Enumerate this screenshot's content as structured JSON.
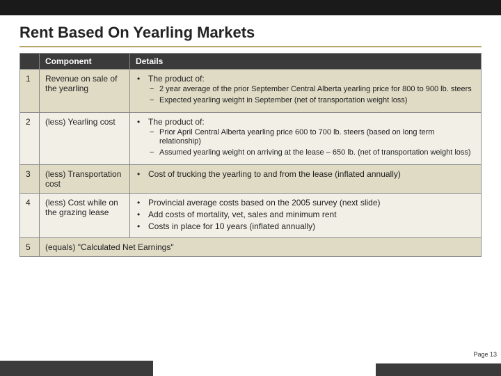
{
  "title": "Rent Based On Yearling Markets",
  "page_number": "Page 13",
  "table": {
    "headers": [
      "Component",
      "Details"
    ],
    "rows": [
      {
        "num": "1",
        "component": "Revenue on sale of the yearling",
        "bullets": [
          {
            "text": "The product of:",
            "subs": [
              "2 year average of the prior September Central Alberta yearling price for 800 to 900 lb. steers",
              "Expected yearling weight in September (net of transportation weight loss)"
            ]
          }
        ],
        "shade": "odd"
      },
      {
        "num": "2",
        "component": "(less) Yearling cost",
        "bullets": [
          {
            "text": "The product of:",
            "subs": [
              "Prior April Central Alberta yearling price 600 to 700 lb. steers (based on long term relationship)",
              "Assumed yearling weight on arriving at the lease – 650 lb. (net of transportation weight loss)"
            ]
          }
        ],
        "shade": "even"
      },
      {
        "num": "3",
        "component": "(less) Transportation cost",
        "bullets": [
          {
            "text": "Cost of trucking the yearling to and from the lease (inflated annually)",
            "subs": []
          }
        ],
        "shade": "odd"
      },
      {
        "num": "4",
        "component": "(less) Cost while on the grazing lease",
        "bullets": [
          {
            "text": "Provincial average costs based on the 2005 survey (next slide)",
            "subs": []
          },
          {
            "text": "Add costs of mortality, vet, sales and minimum rent",
            "subs": []
          },
          {
            "text": "Costs in place for 10 years (inflated annually)",
            "subs": []
          }
        ],
        "shade": "even"
      },
      {
        "num": "5",
        "component_full": "(equals) \"Calculated Net Earnings\"",
        "shade": "odd",
        "fullrow": true
      }
    ]
  }
}
